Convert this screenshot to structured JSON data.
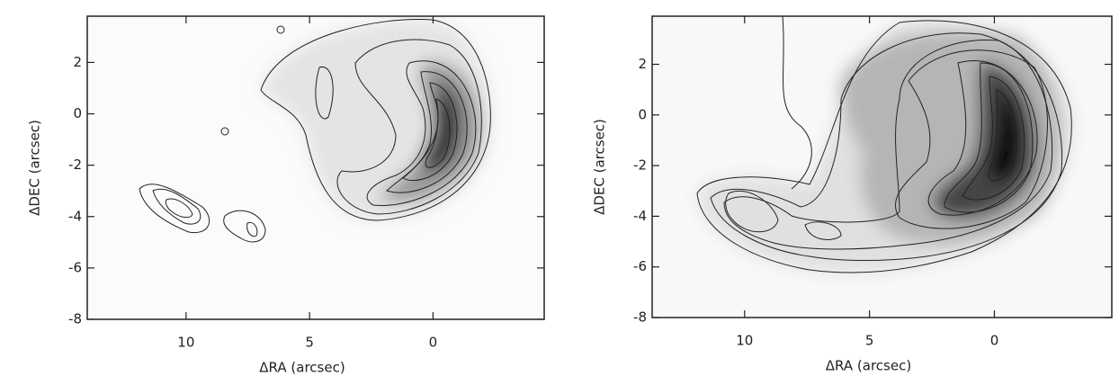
{
  "chart_data": [
    {
      "type": "contour",
      "xlabel": "ΔRA (arcsec)",
      "ylabel": "ΔDEC (arcsec)",
      "xlim": [
        14,
        -4.5
      ],
      "ylim": [
        -8,
        3.8
      ],
      "xticks": [
        10,
        5,
        0
      ],
      "yticks": [
        -8,
        -6,
        -4,
        -2,
        0,
        2
      ]
    },
    {
      "type": "contour",
      "xlabel": "ΔRA (arcsec)",
      "ylabel": "ΔDEC (arcsec)",
      "xlim": [
        13.7,
        -4.7
      ],
      "ylim": [
        -8,
        3.9
      ],
      "xticks": [
        10,
        5,
        0
      ],
      "yticks": [
        -8,
        -6,
        -4,
        -2,
        0,
        2
      ]
    }
  ]
}
